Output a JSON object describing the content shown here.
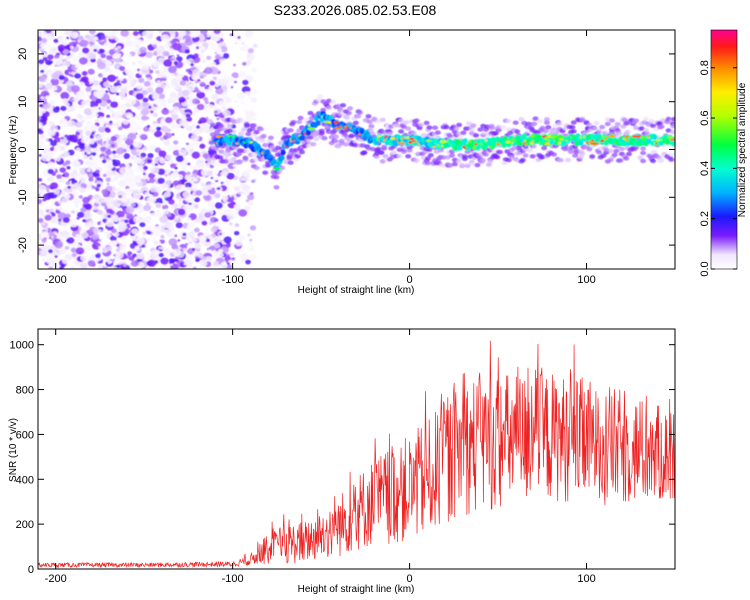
{
  "title": "S233.2026.085.02.53.E08",
  "chart_data": [
    {
      "type": "heatmap",
      "name": "spectrogram",
      "xlabel": "Height of straight line (km)",
      "ylabel": "Frequency (Hz)",
      "xlim": [
        -210,
        150
      ],
      "ylim": [
        -25,
        25
      ],
      "xticks": [
        -200,
        -100,
        0,
        100
      ],
      "yticks": [
        -20,
        -10,
        0,
        10,
        20
      ],
      "colorbar": {
        "label": "Normalized spectral amplitude",
        "range": [
          0,
          0.95
        ],
        "ticks": [
          0.0,
          0.2,
          0.4,
          0.6,
          0.8
        ]
      },
      "noise_region_x": [
        -210,
        -95
      ],
      "ridge": {
        "x": [
          -110,
          -100,
          -90,
          -80,
          -75,
          -70,
          -60,
          -50,
          -40,
          -30,
          -20,
          0,
          20,
          40,
          60,
          80,
          100,
          120,
          150
        ],
        "freq": [
          2,
          2,
          1,
          -1,
          -4,
          1,
          3,
          7,
          5,
          4,
          2,
          2,
          1,
          1,
          2,
          2,
          2,
          2,
          2
        ]
      }
    },
    {
      "type": "line",
      "name": "snr",
      "xlabel": "Height of straight line (km)",
      "ylabel": "SNR (10 * v/v)",
      "xlim": [
        -210,
        150
      ],
      "ylim": [
        0,
        1070
      ],
      "xticks": [
        -200,
        -100,
        0,
        100
      ],
      "yticks": [
        0,
        200,
        400,
        600,
        800,
        1000
      ],
      "series_color": "#ee2222",
      "envelope": {
        "x": [
          -210,
          -150,
          -100,
          -90,
          -80,
          -70,
          -60,
          -50,
          -40,
          -30,
          -20,
          -10,
          0,
          10,
          20,
          30,
          40,
          60,
          80,
          100,
          120,
          150
        ],
        "mean": [
          18,
          18,
          22,
          40,
          90,
          110,
          120,
          150,
          190,
          250,
          300,
          330,
          360,
          400,
          480,
          540,
          560,
          580,
          590,
          570,
          540,
          500
        ],
        "spread": [
          10,
          10,
          12,
          25,
          70,
          90,
          95,
          110,
          140,
          170,
          200,
          220,
          240,
          260,
          280,
          300,
          320,
          300,
          290,
          280,
          260,
          200
        ]
      }
    }
  ]
}
